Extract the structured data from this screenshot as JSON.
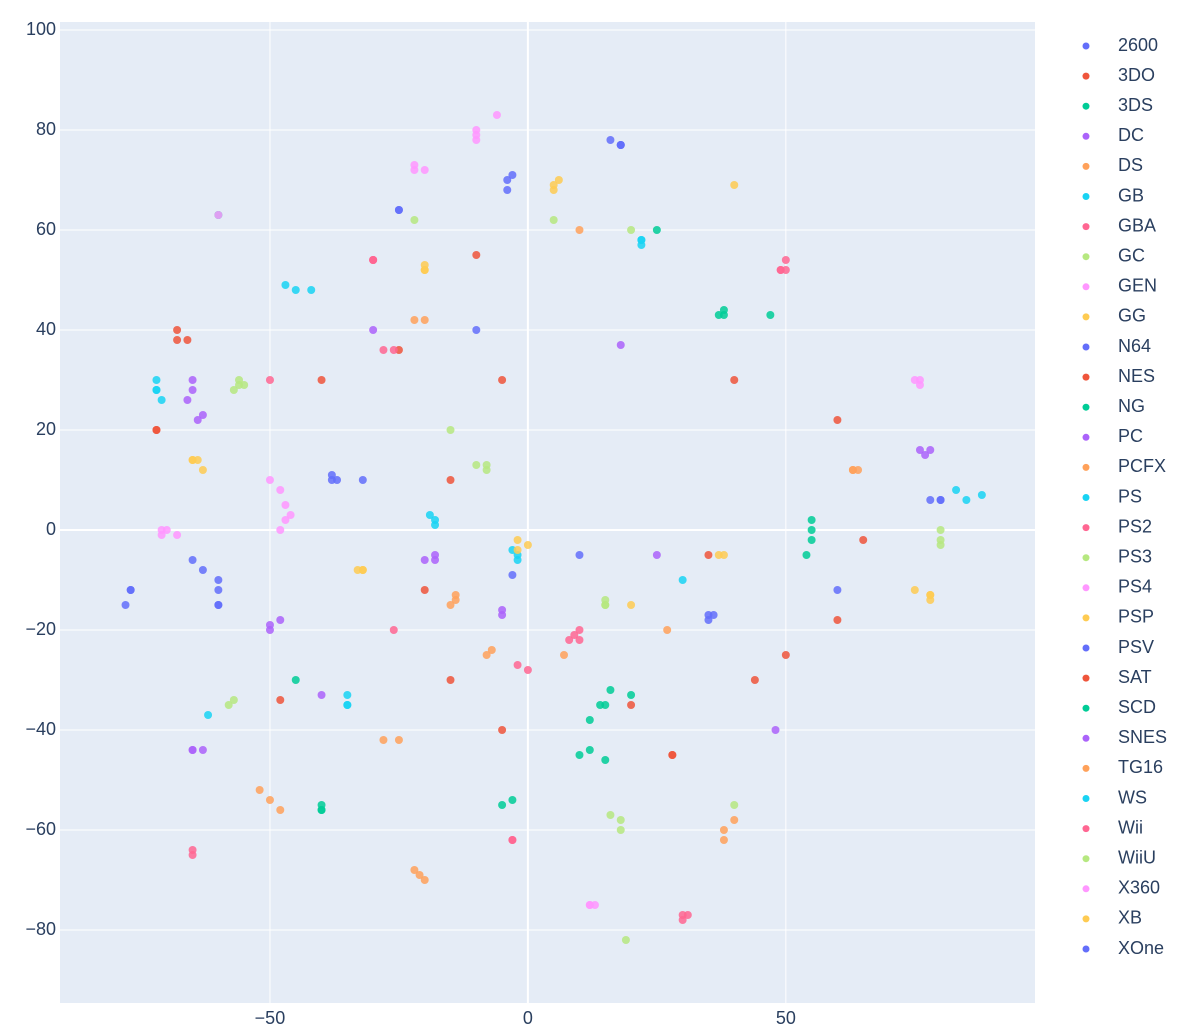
{
  "chart_data": {
    "type": "scatter",
    "xlim": [
      -90.7,
      98.3
    ],
    "ylim": [
      -94.6,
      101.6
    ],
    "xticks": [
      {
        "value": -50,
        "label": "−50"
      },
      0,
      50
    ],
    "yticks": [
      {
        "value": -80,
        "label": "−80"
      },
      {
        "value": -60,
        "label": "−60"
      },
      {
        "value": -40,
        "label": "−40"
      },
      {
        "value": -20,
        "label": "−20"
      },
      0,
      20,
      40,
      60,
      80,
      100
    ],
    "grid": true,
    "legend": "right",
    "series": [
      {
        "name": "2600",
        "color": "#636efa",
        "x": [
          -77,
          -78,
          -63,
          -60,
          18,
          -3,
          -32,
          -25
        ],
        "values": [
          -12,
          -15,
          -8,
          -15,
          77,
          -9,
          10,
          64
        ]
      },
      {
        "name": "3DO",
        "color": "#EF553B",
        "x": [
          -72,
          -15,
          35,
          44,
          60,
          -5,
          20,
          -10
        ],
        "values": [
          20,
          10,
          -5,
          -30,
          -18,
          -40,
          -35,
          55
        ]
      },
      {
        "name": "3DS",
        "color": "#00cc96",
        "x": [
          15,
          12,
          20,
          55,
          54,
          -40,
          38,
          10
        ],
        "values": [
          -35,
          -38,
          -33,
          0,
          -5,
          -56,
          43,
          -45
        ]
      },
      {
        "name": "DC",
        "color": "#ab63fa",
        "x": [
          -65,
          -64,
          -50,
          -48,
          -63,
          -20,
          78,
          25
        ],
        "values": [
          28,
          22,
          -19,
          -18,
          -44,
          -6,
          16,
          -5
        ]
      },
      {
        "name": "DS",
        "color": "#FFA15A",
        "x": [
          -50,
          -22,
          -20,
          38,
          7,
          -14,
          64,
          -20
        ],
        "values": [
          -54,
          -68,
          -70,
          -62,
          -25,
          -14,
          12,
          42
        ]
      },
      {
        "name": "GB",
        "color": "#19d3f3",
        "x": [
          -72,
          -71,
          -47,
          -18,
          -2,
          22,
          88,
          -35
        ],
        "values": [
          28,
          26,
          49,
          2,
          -5,
          57,
          7,
          -33
        ]
      },
      {
        "name": "GBA",
        "color": "#FF6692",
        "x": [
          -30,
          -28,
          49,
          50,
          8,
          10,
          30,
          -50
        ],
        "values": [
          54,
          36,
          52,
          54,
          -22,
          -20,
          -77,
          30
        ]
      },
      {
        "name": "GC",
        "color": "#B6E880",
        "x": [
          -56,
          -57,
          -10,
          15,
          16,
          19,
          80,
          20
        ],
        "values": [
          30,
          28,
          13,
          -15,
          -57,
          -82,
          0,
          60
        ]
      },
      {
        "name": "GEN",
        "color": "#FF97FF",
        "x": [
          -71,
          -68,
          -48,
          -47,
          -10,
          -22,
          12,
          75
        ],
        "values": [
          0,
          -1,
          0,
          5,
          80,
          72,
          -75,
          30
        ]
      },
      {
        "name": "GG",
        "color": "#FECB52",
        "x": [
          -65,
          -63,
          -32,
          -20,
          5,
          0,
          75,
          78
        ],
        "values": [
          14,
          12,
          -8,
          52,
          68,
          -3,
          -12,
          -14
        ]
      },
      {
        "name": "N64",
        "color": "#636efa",
        "x": [
          -38,
          16,
          -4,
          80,
          35,
          10,
          -60,
          -10
        ],
        "values": [
          10,
          78,
          68,
          6,
          -18,
          -5,
          -10,
          40
        ]
      },
      {
        "name": "NES",
        "color": "#EF553B",
        "x": [
          -68,
          -66,
          -25,
          28,
          -40,
          65,
          40,
          -15
        ],
        "values": [
          40,
          38,
          36,
          -45,
          30,
          -2,
          30,
          -30
        ]
      },
      {
        "name": "NG",
        "color": "#00cc96",
        "x": [
          55,
          -40,
          37,
          -45,
          15,
          -60,
          25,
          -5
        ],
        "values": [
          2,
          -56,
          43,
          -30,
          -46,
          63,
          60,
          -55
        ]
      },
      {
        "name": "PC",
        "color": "#ab63fa",
        "x": [
          -65,
          76,
          18,
          -18,
          -5,
          -65,
          48,
          -30
        ],
        "values": [
          30,
          16,
          37,
          -6,
          -17,
          -44,
          -40,
          40
        ]
      },
      {
        "name": "PCFX",
        "color": "#FFA15A",
        "x": [
          63,
          -15,
          -8,
          -22,
          40,
          -25,
          27,
          10
        ],
        "values": [
          12,
          -15,
          -25,
          42,
          -58,
          -42,
          -20,
          60
        ]
      },
      {
        "name": "PS",
        "color": "#19d3f3",
        "x": [
          -42,
          -72,
          -19,
          -35,
          22,
          83,
          -2,
          30
        ],
        "values": [
          48,
          30,
          3,
          -35,
          58,
          8,
          -6,
          -10
        ]
      },
      {
        "name": "PS2",
        "color": "#FF6692",
        "x": [
          -30,
          -26,
          10,
          30,
          -65,
          49,
          0,
          -3
        ],
        "values": [
          54,
          -20,
          -22,
          -78,
          -64,
          52,
          -28,
          -62
        ]
      },
      {
        "name": "PS3",
        "color": "#B6E880",
        "x": [
          -55,
          -8,
          15,
          18,
          -58,
          40,
          80,
          -15
        ],
        "values": [
          29,
          12,
          -15,
          -60,
          -35,
          -55,
          -3,
          20
        ]
      },
      {
        "name": "PS4",
        "color": "#FF97FF",
        "x": [
          -70,
          -47,
          -10,
          -20,
          13,
          76,
          -48,
          -6
        ],
        "values": [
          0,
          2,
          78,
          72,
          -75,
          30,
          8,
          83
        ]
      },
      {
        "name": "PSP",
        "color": "#FECB52",
        "x": [
          -65,
          -32,
          -20,
          6,
          -2,
          78,
          37,
          20
        ],
        "values": [
          14,
          -8,
          52,
          70,
          -2,
          -13,
          -5,
          -15
        ]
      },
      {
        "name": "PSV",
        "color": "#636efa",
        "x": [
          -37,
          -60,
          35,
          18,
          -4,
          -65,
          78,
          60
        ],
        "values": [
          10,
          -12,
          -17,
          77,
          70,
          -6,
          6,
          -12
        ]
      },
      {
        "name": "SAT",
        "color": "#EF553B",
        "x": [
          -72,
          -68,
          28,
          50,
          -20,
          -5,
          60,
          -48
        ],
        "values": [
          20,
          38,
          -45,
          -25,
          -12,
          30,
          22,
          -34
        ]
      },
      {
        "name": "SCD",
        "color": "#00cc96",
        "x": [
          14,
          16,
          55,
          12,
          -40,
          -3,
          38,
          47
        ],
        "values": [
          -35,
          -32,
          -2,
          -44,
          -55,
          -54,
          44,
          43
        ]
      },
      {
        "name": "SNES",
        "color": "#ab63fa",
        "x": [
          -66,
          -63,
          -50,
          -65,
          77,
          -18,
          -5,
          -40
        ],
        "values": [
          26,
          23,
          -20,
          -44,
          15,
          -5,
          -16,
          -33
        ]
      },
      {
        "name": "TG16",
        "color": "#FFA15A",
        "x": [
          -52,
          -48,
          -21,
          38,
          -14,
          -7,
          63,
          -28
        ],
        "values": [
          -52,
          -56,
          -69,
          -60,
          -13,
          -24,
          12,
          -42
        ]
      },
      {
        "name": "WS",
        "color": "#19d3f3",
        "x": [
          -72,
          -45,
          -18,
          -3,
          22,
          85,
          -62,
          -35
        ],
        "values": [
          28,
          48,
          1,
          -4,
          58,
          6,
          -37,
          -35
        ]
      },
      {
        "name": "Wii",
        "color": "#FF6692",
        "x": [
          -30,
          -26,
          50,
          9,
          31,
          -2,
          -65,
          -3
        ],
        "values": [
          54,
          36,
          52,
          -21,
          -77,
          -27,
          -65,
          -62
        ]
      },
      {
        "name": "WiiU",
        "color": "#B6E880",
        "x": [
          -56,
          -8,
          15,
          18,
          -57,
          80,
          -22,
          5
        ],
        "values": [
          29,
          13,
          -14,
          -58,
          -34,
          -2,
          62,
          62
        ]
      },
      {
        "name": "X360",
        "color": "#FF97FF",
        "x": [
          -71,
          -46,
          -10,
          -22,
          12,
          76,
          -50,
          -60
        ],
        "values": [
          -1,
          3,
          79,
          73,
          -75,
          29,
          10,
          63
        ]
      },
      {
        "name": "XB",
        "color": "#FECB52",
        "x": [
          -64,
          -33,
          -20,
          5,
          -2,
          78,
          38,
          40
        ],
        "values": [
          14,
          -8,
          53,
          69,
          -4,
          -13,
          -5,
          69
        ]
      },
      {
        "name": "XOne",
        "color": "#636efa",
        "x": [
          -38,
          18,
          -77,
          -60,
          36,
          80,
          -25,
          -3
        ],
        "values": [
          11,
          77,
          -12,
          -15,
          -17,
          6,
          64,
          71
        ]
      }
    ]
  }
}
